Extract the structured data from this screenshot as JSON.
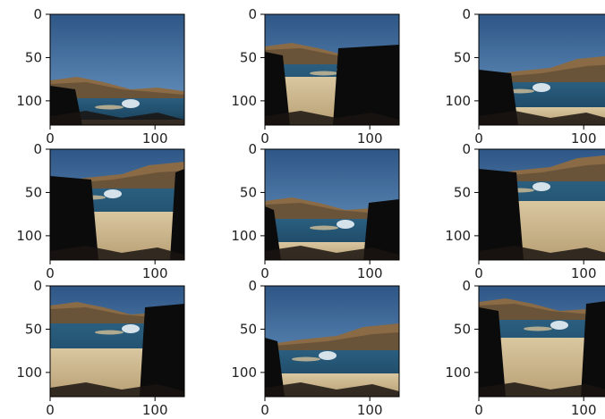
{
  "figure": {
    "layout": "3x3 grid of image panels",
    "panels": [
      {
        "yticks": [
          "0",
          "50",
          "100"
        ],
        "xticks": [
          "0",
          "100"
        ]
      },
      {
        "yticks": [
          "0",
          "50",
          "100"
        ],
        "xticks": [
          "0",
          "100"
        ]
      },
      {
        "yticks": [
          "0",
          "50",
          "100"
        ],
        "xticks": [
          "0",
          "100"
        ]
      },
      {
        "yticks": [
          "0",
          "50",
          "100"
        ],
        "xticks": [
          "0",
          "100"
        ]
      },
      {
        "yticks": [
          "0",
          "50",
          "100"
        ],
        "xticks": [
          "0",
          "100"
        ]
      },
      {
        "yticks": [
          "0",
          "50",
          "100"
        ],
        "xticks": [
          "0",
          "100"
        ]
      },
      {
        "yticks": [
          "0",
          "50",
          "100"
        ],
        "xticks": [
          "0",
          "100"
        ]
      },
      {
        "yticks": [
          "0",
          "50",
          "100"
        ],
        "xticks": [
          "0",
          "100"
        ]
      },
      {
        "yticks": [
          "0",
          "50",
          "100"
        ],
        "xticks": [
          "0",
          "100"
        ]
      }
    ]
  },
  "colors": {
    "sky": "#3f6da0",
    "hills": "#8a6b46",
    "sea": "#2b5a78",
    "sand": "#cdb890",
    "rock": "#0b0b0b"
  }
}
